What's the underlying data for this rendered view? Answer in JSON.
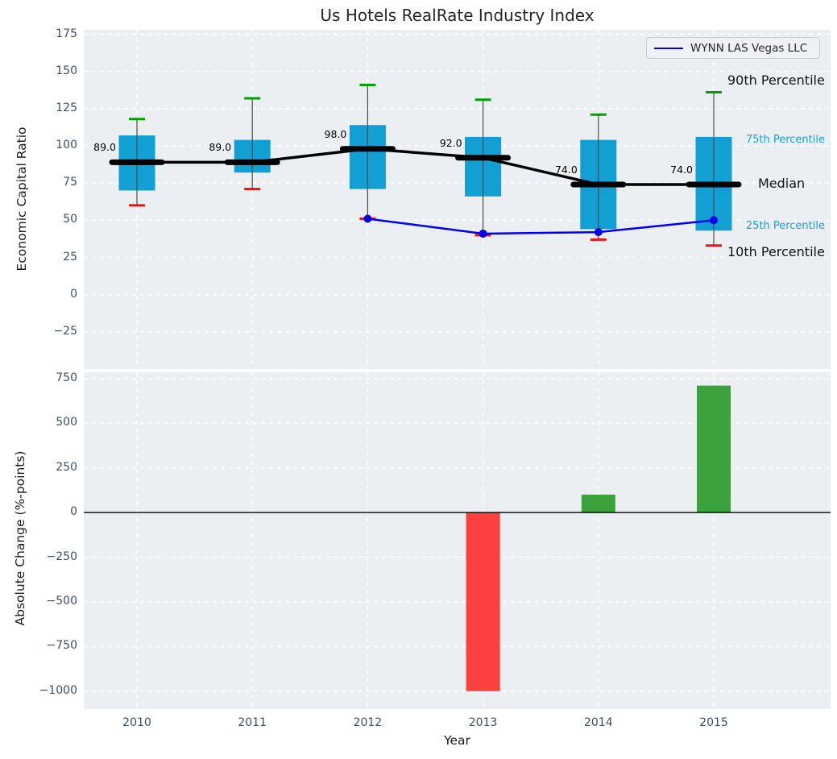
{
  "figure": {
    "title": "Us Hotels RealRate Industry Index"
  },
  "legend": {
    "label": "WYNN LAS Vegas LLC"
  },
  "annotations": {
    "p90": "90th Percentile",
    "p75": "75th Percentile",
    "median": "Median",
    "p25": "25th Percentile",
    "p10": "10th Percentile"
  },
  "colors": {
    "panel_bg": "#eceff1",
    "grid": "#ffffff",
    "tick_text": "#3e4d63",
    "box_fill": "#119fd4",
    "median_line": "#000000",
    "whisker": "#4d4d4d",
    "cap_90": "#00a000",
    "cap_10": "#ee1111",
    "wynn_line": "#0000ee",
    "bar_positive": "#3ca23c",
    "bar_negative": "#fb4040",
    "percentile_label": "#199fd4",
    "zero_line": "#000000"
  },
  "chart_data": [
    {
      "type": "boxplot",
      "title": "Us Hotels RealRate Industry Index",
      "xlabel": "",
      "ylabel": "Economic Capital Ratio",
      "categories": [
        "2010",
        "2011",
        "2012",
        "2013",
        "2014",
        "2015"
      ],
      "yticks": [
        175,
        150,
        125,
        100,
        75,
        50,
        25,
        0,
        -25
      ],
      "ylim": [
        -50,
        178
      ],
      "grid": true,
      "legend_position": "upper right",
      "series": [
        {
          "name": "90th Percentile",
          "values": [
            118,
            132,
            141,
            131,
            121,
            136
          ]
        },
        {
          "name": "75th Percentile",
          "values": [
            107,
            104,
            114,
            106,
            104,
            106
          ]
        },
        {
          "name": "Median",
          "values": [
            89,
            89,
            98,
            92,
            74,
            74
          ]
        },
        {
          "name": "25th Percentile",
          "values": [
            70,
            82,
            71,
            66,
            44,
            43
          ]
        },
        {
          "name": "10th Percentile",
          "values": [
            60,
            71,
            51,
            40,
            37,
            33
          ]
        },
        {
          "name": "WYNN LAS Vegas LLC",
          "values": [
            null,
            null,
            51,
            41,
            42,
            50
          ]
        }
      ],
      "median_labels": [
        "89.0",
        "89.0",
        "98.0",
        "92.0",
        "74.0",
        "74.0"
      ]
    },
    {
      "type": "bar",
      "title": "",
      "xlabel": "Year",
      "ylabel": "Absolute Change (%-points)",
      "categories": [
        "2010",
        "2011",
        "2012",
        "2013",
        "2014",
        "2015"
      ],
      "values": [
        0,
        0,
        0,
        -1000,
        100,
        710
      ],
      "yticks": [
        750,
        500,
        250,
        0,
        -250,
        -500,
        -750,
        -1000
      ],
      "ylim": [
        -1100,
        785
      ],
      "grid": true,
      "color_rule": "green if positive, red if negative"
    }
  ]
}
